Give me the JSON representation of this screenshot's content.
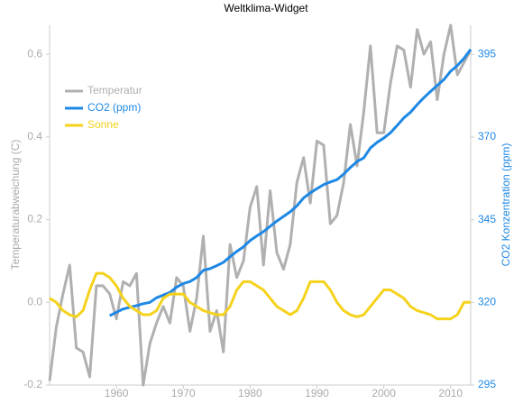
{
  "chart_data": {
    "type": "line",
    "title": "Weltklima-Widget",
    "y_label": "Temperaturabweichung (C)",
    "y2_label": "CO2 Konzentration (ppm)",
    "x": [
      1950,
      1951,
      1952,
      1953,
      1954,
      1955,
      1956,
      1957,
      1958,
      1959,
      1960,
      1961,
      1962,
      1963,
      1964,
      1965,
      1966,
      1967,
      1968,
      1969,
      1970,
      1971,
      1972,
      1973,
      1974,
      1975,
      1976,
      1977,
      1978,
      1979,
      1980,
      1981,
      1982,
      1983,
      1984,
      1985,
      1986,
      1987,
      1988,
      1989,
      1990,
      1991,
      1992,
      1993,
      1994,
      1995,
      1996,
      1997,
      1998,
      1999,
      2000,
      2001,
      2002,
      2003,
      2004,
      2005,
      2006,
      2007,
      2008,
      2009,
      2010,
      2011,
      2012,
      2013
    ],
    "series": [
      {
        "name": "Temperatur",
        "color": "#b0b0b0",
        "axis": "y",
        "values": [
          -0.19,
          -0.06,
          0.02,
          0.09,
          -0.11,
          -0.12,
          -0.18,
          0.04,
          0.04,
          0.02,
          -0.04,
          0.05,
          0.04,
          0.07,
          -0.2,
          -0.1,
          -0.05,
          -0.01,
          -0.05,
          0.06,
          0.04,
          -0.07,
          0.01,
          0.16,
          -0.07,
          -0.02,
          -0.12,
          0.14,
          0.06,
          0.1,
          0.23,
          0.28,
          0.09,
          0.27,
          0.12,
          0.08,
          0.14,
          0.29,
          0.35,
          0.24,
          0.39,
          0.38,
          0.19,
          0.21,
          0.29,
          0.43,
          0.33,
          0.46,
          0.62,
          0.41,
          0.41,
          0.53,
          0.62,
          0.61,
          0.52,
          0.66,
          0.6,
          0.63,
          0.49,
          0.6,
          0.67,
          0.55,
          0.58,
          0.61
        ]
      },
      {
        "name": "CO2 (ppm)",
        "color": "#1e88e5",
        "axis": "y2",
        "values": [
          null,
          null,
          null,
          null,
          null,
          null,
          null,
          null,
          null,
          316,
          317,
          318,
          318.5,
          319,
          319.6,
          320,
          321.4,
          322.2,
          323,
          324.6,
          325.7,
          326.3,
          327.5,
          329.7,
          330.2,
          331.1,
          332.1,
          333.8,
          335.4,
          336.8,
          338.7,
          340.1,
          341.4,
          343,
          344.6,
          346,
          347.4,
          349.2,
          351.6,
          353.1,
          354.4,
          355.6,
          356.4,
          357.1,
          358.8,
          360.8,
          362.6,
          363.7,
          366.7,
          368.4,
          369.7,
          371.3,
          373.5,
          375.8,
          377.5,
          379.8,
          381.9,
          383.8,
          385.6,
          387.4,
          389.9,
          391.6,
          393.8,
          396.5
        ]
      },
      {
        "name": "Sonne",
        "color": "#f5d21c",
        "axis": "y",
        "values": [
          0.01,
          0,
          -0.02,
          -0.03,
          -0.035,
          -0.02,
          0.03,
          0.07,
          0.07,
          0.06,
          0.04,
          0.01,
          -0.01,
          -0.02,
          -0.03,
          -0.03,
          -0.02,
          0.01,
          0.02,
          0.02,
          0.02,
          0,
          -0.01,
          -0.02,
          -0.025,
          -0.03,
          -0.03,
          -0.01,
          0.03,
          0.05,
          0.05,
          0.04,
          0.03,
          0.01,
          -0.01,
          -0.02,
          -0.03,
          -0.02,
          0.01,
          0.05,
          0.05,
          0.05,
          0.03,
          0,
          -0.02,
          -0.03,
          -0.035,
          -0.03,
          -0.01,
          0.01,
          0.03,
          0.03,
          0.02,
          0.01,
          -0.01,
          -0.02,
          -0.025,
          -0.03,
          -0.04,
          -0.04,
          -0.04,
          -0.03,
          0,
          0
        ]
      }
    ],
    "xlim": [
      1950,
      2013
    ],
    "xticks": [
      1960,
      1970,
      1980,
      1990,
      2000,
      2010
    ],
    "ylim": [
      -0.2,
      0.67
    ],
    "yticks": [
      {
        "value": -0.2,
        "label": "-0.2"
      },
      {
        "value": 0,
        "label": "0.0"
      },
      {
        "value": 0.2,
        "label": "0.2"
      },
      {
        "value": 0.4,
        "label": "0.4"
      },
      {
        "value": 0.6,
        "label": "0.6"
      }
    ],
    "y2lim": [
      295,
      403.8
    ],
    "y2ticks": [
      295,
      320,
      345,
      370,
      395
    ],
    "legend": "upper left"
  }
}
